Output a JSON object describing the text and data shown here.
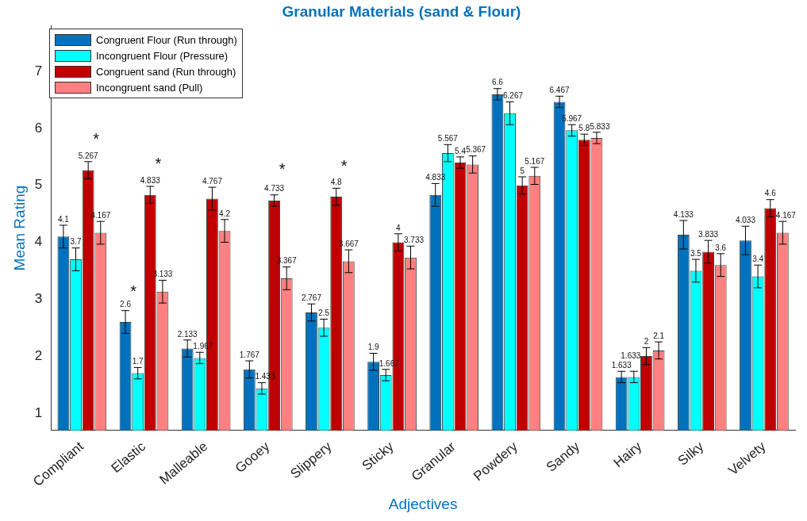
{
  "chart_data": {
    "type": "bar",
    "title": "Granular Materials (sand & Flour)",
    "xlabel": "Adjectives",
    "ylabel": "Mean Rating",
    "categories": [
      "Compliant",
      "Elastic",
      "Malleable",
      "Gooey",
      "Slippery",
      "Sticky",
      "Granular",
      "Powdery",
      "Sandy",
      "Hairy",
      "Silky",
      "Velvety"
    ],
    "series": [
      {
        "name": "Congruent Flour (Run through)",
        "color": "#0072bd",
        "values": [
          4.1,
          2.6,
          2.133,
          1.767,
          2.767,
          1.9,
          4.833,
          6.6,
          6.467,
          1.633,
          4.133,
          4.033
        ],
        "errors": [
          0.2,
          0.2,
          0.15,
          0.15,
          0.15,
          0.15,
          0.2,
          0.1,
          0.1,
          0.1,
          0.25,
          0.25
        ]
      },
      {
        "name": "Incongruent Flour (Pressure)",
        "color": "#00ffff",
        "values": [
          3.7,
          1.7,
          1.967,
          1.433,
          2.5,
          1.667,
          5.567,
          6.267,
          5.967,
          1.633,
          3.5,
          3.4
        ],
        "errors": [
          0.2,
          0.1,
          0.1,
          0.1,
          0.15,
          0.1,
          0.15,
          0.2,
          0.1,
          0.1,
          0.2,
          0.2
        ]
      },
      {
        "name": "Congruent sand (Run through)",
        "color": "#c00000",
        "values": [
          5.267,
          4.833,
          4.767,
          4.733,
          4.8,
          4,
          5.4,
          5,
          5.8,
          2,
          3.833,
          4.6
        ],
        "errors": [
          0.15,
          0.15,
          0.2,
          0.1,
          0.15,
          0.15,
          0.1,
          0.15,
          0.1,
          0.15,
          0.2,
          0.15
        ]
      },
      {
        "name": "Incongruent sand (Pull)",
        "color": "#ff8080",
        "values": [
          4.167,
          3.133,
          4.2,
          3.367,
          3.667,
          3.733,
          5.367,
          5.167,
          5.833,
          2.1,
          3.6,
          4.167
        ],
        "errors": [
          0.2,
          0.2,
          0.2,
          0.2,
          0.2,
          0.2,
          0.15,
          0.15,
          0.1,
          0.15,
          0.2,
          0.2
        ]
      }
    ],
    "ylim": [
      0.7,
      7.8
    ],
    "yticks": [
      1,
      2,
      3,
      4,
      5,
      6,
      7
    ],
    "grid": false,
    "legend": "top left",
    "data_labels": true,
    "annotations": [
      {
        "text": "*",
        "x": "Compliant",
        "y": 5.267
      },
      {
        "text": "*",
        "x": "Elastic",
        "y": 2.6
      },
      {
        "text": "*",
        "x": "Elastic",
        "y": 4.833
      },
      {
        "text": "*",
        "x": "Gooey",
        "y": 4.733
      },
      {
        "text": "*",
        "x": "Slippery",
        "y": 4.8
      }
    ]
  }
}
